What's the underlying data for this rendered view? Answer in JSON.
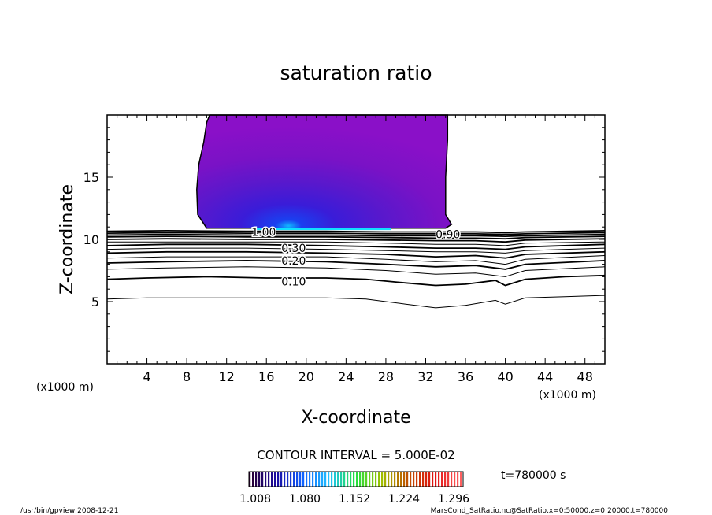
{
  "chart_data": {
    "type": "contour",
    "title": "saturation ratio",
    "xlabel": "X-coordinate",
    "ylabel": "Z-coordinate",
    "x_unit": "(x1000 m)",
    "y_unit": "(x1000 m)",
    "xlim": [
      0,
      50
    ],
    "ylim": [
      0,
      20
    ],
    "x_ticks": [
      4,
      8,
      12,
      16,
      20,
      24,
      28,
      32,
      36,
      40,
      44,
      48
    ],
    "y_ticks": [
      5,
      10,
      15
    ],
    "contour_interval_label": "CONTOUR INTERVAL = 5.000E-02",
    "contour_labels": [
      {
        "text": "1.00",
        "x": 14.5,
        "z": 10.6
      },
      {
        "text": "0.30",
        "x": 17.5,
        "z": 9.3
      },
      {
        "text": "0.20",
        "x": 17.5,
        "z": 8.3
      },
      {
        "text": "0.10",
        "x": 17.5,
        "z": 6.6
      },
      {
        "text": "0.90",
        "x": 33.0,
        "z": 10.4
      }
    ],
    "line_contours": [
      {
        "level": 0.05,
        "points": [
          [
            0,
            5.2
          ],
          [
            4,
            5.3
          ],
          [
            10,
            5.3
          ],
          [
            16,
            5.3
          ],
          [
            22,
            5.3
          ],
          [
            26,
            5.2
          ],
          [
            30,
            4.8
          ],
          [
            33,
            4.5
          ],
          [
            36,
            4.7
          ],
          [
            39,
            5.1
          ],
          [
            40,
            4.8
          ],
          [
            42,
            5.3
          ],
          [
            46,
            5.4
          ],
          [
            50,
            5.5
          ]
        ]
      },
      {
        "level": 0.1,
        "points": [
          [
            0,
            6.8
          ],
          [
            4,
            6.9
          ],
          [
            10,
            7.0
          ],
          [
            16,
            6.9
          ],
          [
            22,
            6.9
          ],
          [
            26,
            6.8
          ],
          [
            30,
            6.5
          ],
          [
            33,
            6.3
          ],
          [
            36,
            6.4
          ],
          [
            39,
            6.7
          ],
          [
            40,
            6.3
          ],
          [
            42,
            6.8
          ],
          [
            46,
            7.0
          ],
          [
            50,
            7.1
          ]
        ]
      },
      {
        "level": 0.15,
        "points": [
          [
            0,
            7.6
          ],
          [
            6,
            7.7
          ],
          [
            14,
            7.8
          ],
          [
            22,
            7.7
          ],
          [
            28,
            7.5
          ],
          [
            33,
            7.2
          ],
          [
            37,
            7.3
          ],
          [
            40,
            7.0
          ],
          [
            42,
            7.5
          ],
          [
            50,
            7.8
          ]
        ]
      },
      {
        "level": 0.2,
        "points": [
          [
            0,
            8.1
          ],
          [
            6,
            8.2
          ],
          [
            14,
            8.3
          ],
          [
            22,
            8.2
          ],
          [
            28,
            8.0
          ],
          [
            33,
            7.8
          ],
          [
            37,
            7.9
          ],
          [
            40,
            7.6
          ],
          [
            42,
            8.0
          ],
          [
            50,
            8.3
          ]
        ]
      },
      {
        "level": 0.25,
        "points": [
          [
            0,
            8.5
          ],
          [
            6,
            8.6
          ],
          [
            14,
            8.6
          ],
          [
            22,
            8.6
          ],
          [
            28,
            8.4
          ],
          [
            33,
            8.2
          ],
          [
            37,
            8.3
          ],
          [
            40,
            8.0
          ],
          [
            42,
            8.4
          ],
          [
            50,
            8.7
          ]
        ]
      },
      {
        "level": 0.3,
        "points": [
          [
            0,
            8.9
          ],
          [
            6,
            9.0
          ],
          [
            14,
            9.0
          ],
          [
            22,
            8.9
          ],
          [
            28,
            8.8
          ],
          [
            33,
            8.6
          ],
          [
            37,
            8.7
          ],
          [
            40,
            8.5
          ],
          [
            42,
            8.8
          ],
          [
            50,
            9.0
          ]
        ]
      },
      {
        "level": 0.35,
        "points": [
          [
            0,
            9.2
          ],
          [
            6,
            9.3
          ],
          [
            14,
            9.3
          ],
          [
            22,
            9.2
          ],
          [
            28,
            9.1
          ],
          [
            33,
            9.0
          ],
          [
            37,
            9.0
          ],
          [
            40,
            8.9
          ],
          [
            42,
            9.1
          ],
          [
            50,
            9.3
          ]
        ]
      },
      {
        "level": 0.4,
        "points": [
          [
            0,
            9.5
          ],
          [
            6,
            9.6
          ],
          [
            14,
            9.6
          ],
          [
            22,
            9.5
          ],
          [
            28,
            9.4
          ],
          [
            33,
            9.3
          ],
          [
            37,
            9.3
          ],
          [
            40,
            9.2
          ],
          [
            42,
            9.4
          ],
          [
            50,
            9.6
          ]
        ]
      },
      {
        "level": 0.45,
        "points": [
          [
            0,
            9.8
          ],
          [
            6,
            9.8
          ],
          [
            14,
            9.8
          ],
          [
            22,
            9.8
          ],
          [
            28,
            9.7
          ],
          [
            33,
            9.6
          ],
          [
            37,
            9.6
          ],
          [
            40,
            9.5
          ],
          [
            42,
            9.7
          ],
          [
            50,
            9.8
          ]
        ]
      },
      {
        "level": 0.5,
        "points": [
          [
            0,
            10.0
          ],
          [
            6,
            10.05
          ],
          [
            14,
            10.0
          ],
          [
            22,
            10.0
          ],
          [
            28,
            9.95
          ],
          [
            33,
            9.9
          ],
          [
            37,
            9.9
          ],
          [
            40,
            9.8
          ],
          [
            42,
            9.95
          ],
          [
            50,
            10.05
          ]
        ]
      },
      {
        "level": 0.6,
        "points": [
          [
            0,
            10.2
          ],
          [
            6,
            10.25
          ],
          [
            14,
            10.2
          ],
          [
            22,
            10.2
          ],
          [
            28,
            10.15
          ],
          [
            33,
            10.1
          ],
          [
            37,
            10.1
          ],
          [
            40,
            10.05
          ],
          [
            42,
            10.15
          ],
          [
            50,
            10.25
          ]
        ]
      },
      {
        "level": 0.7,
        "points": [
          [
            0,
            10.35
          ],
          [
            6,
            10.4
          ],
          [
            14,
            10.35
          ],
          [
            22,
            10.35
          ],
          [
            28,
            10.3
          ],
          [
            33,
            10.3
          ],
          [
            37,
            10.3
          ],
          [
            40,
            10.25
          ],
          [
            42,
            10.3
          ],
          [
            50,
            10.4
          ]
        ]
      },
      {
        "level": 0.8,
        "points": [
          [
            0,
            10.5
          ],
          [
            6,
            10.55
          ],
          [
            14,
            10.5
          ],
          [
            22,
            10.5
          ],
          [
            28,
            10.45
          ],
          [
            33,
            10.45
          ],
          [
            37,
            10.45
          ],
          [
            40,
            10.4
          ],
          [
            42,
            10.45
          ],
          [
            50,
            10.55
          ]
        ]
      },
      {
        "level": 0.9,
        "points": [
          [
            0,
            10.65
          ],
          [
            6,
            10.7
          ],
          [
            14,
            10.65
          ],
          [
            22,
            10.65
          ],
          [
            28,
            10.6
          ],
          [
            33,
            10.6
          ],
          [
            37,
            10.6
          ],
          [
            40,
            10.55
          ],
          [
            42,
            10.6
          ],
          [
            50,
            10.7
          ]
        ]
      }
    ],
    "filled_region": {
      "level": 1.008,
      "outline": [
        [
          10.0,
          10.9
        ],
        [
          9.1,
          12.0
        ],
        [
          9.0,
          14.0
        ],
        [
          9.2,
          16.0
        ],
        [
          9.7,
          17.8
        ],
        [
          10.0,
          19.4
        ],
        [
          10.3,
          20.0
        ],
        [
          34.2,
          20.0
        ],
        [
          34.2,
          18.0
        ],
        [
          34.0,
          15.0
        ],
        [
          34.0,
          12.0
        ],
        [
          34.6,
          11.2
        ],
        [
          34.0,
          10.9
        ]
      ]
    },
    "color_scale": {
      "min_label": "1.008",
      "labels": [
        "1.008",
        "1.080",
        "1.152",
        "1.224",
        "1.296"
      ],
      "colors": [
        "#2a0030",
        "#1a0aa0",
        "#1060ff",
        "#20c0ff",
        "#20e040",
        "#a0c000",
        "#c05000",
        "#e01010",
        "#ff6060"
      ]
    },
    "time_label": "t=780000 s",
    "footer_left": "/usr/bin/gpview   2008-12-21",
    "footer_right": "MarsCond_SatRatio.nc@SatRatio,x=0:50000,z=0:20000,t=780000"
  },
  "colors": {
    "fill_outer": "#8a10c8",
    "fill_mid": "#5a20d0",
    "fill_core": "#2040f0",
    "fill_center": "#10c0ff"
  }
}
